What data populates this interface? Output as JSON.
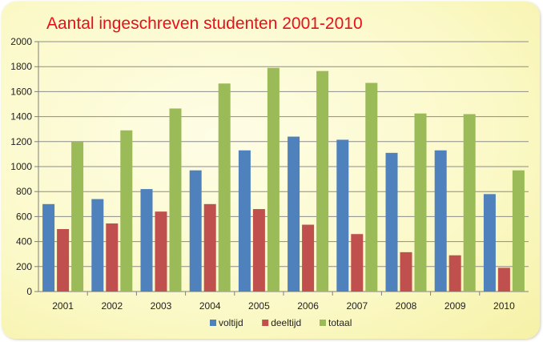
{
  "chart_data": {
    "type": "bar",
    "title": "Aantal ingeschreven studenten 2001-2010",
    "categories": [
      "2001",
      "2002",
      "2003",
      "2004",
      "2005",
      "2006",
      "2007",
      "2008",
      "2009",
      "2010"
    ],
    "series": [
      {
        "name": "voltijd",
        "color": "#4f81bd",
        "values": [
          700,
          740,
          820,
          970,
          1130,
          1240,
          1215,
          1110,
          1130,
          780
        ]
      },
      {
        "name": "deeltijd",
        "color": "#c0504d",
        "values": [
          500,
          545,
          640,
          700,
          660,
          535,
          460,
          315,
          290,
          190
        ]
      },
      {
        "name": "totaal",
        "color": "#9bbb59",
        "values": [
          1200,
          1290,
          1465,
          1665,
          1790,
          1765,
          1670,
          1425,
          1420,
          970
        ]
      }
    ],
    "yticks": [
      "0",
      "200",
      "400",
      "600",
      "800",
      "1000",
      "1200",
      "1400",
      "1600",
      "1800",
      "2000"
    ],
    "ylim": [
      0,
      2000
    ],
    "grid": true,
    "legend": "bottom"
  }
}
